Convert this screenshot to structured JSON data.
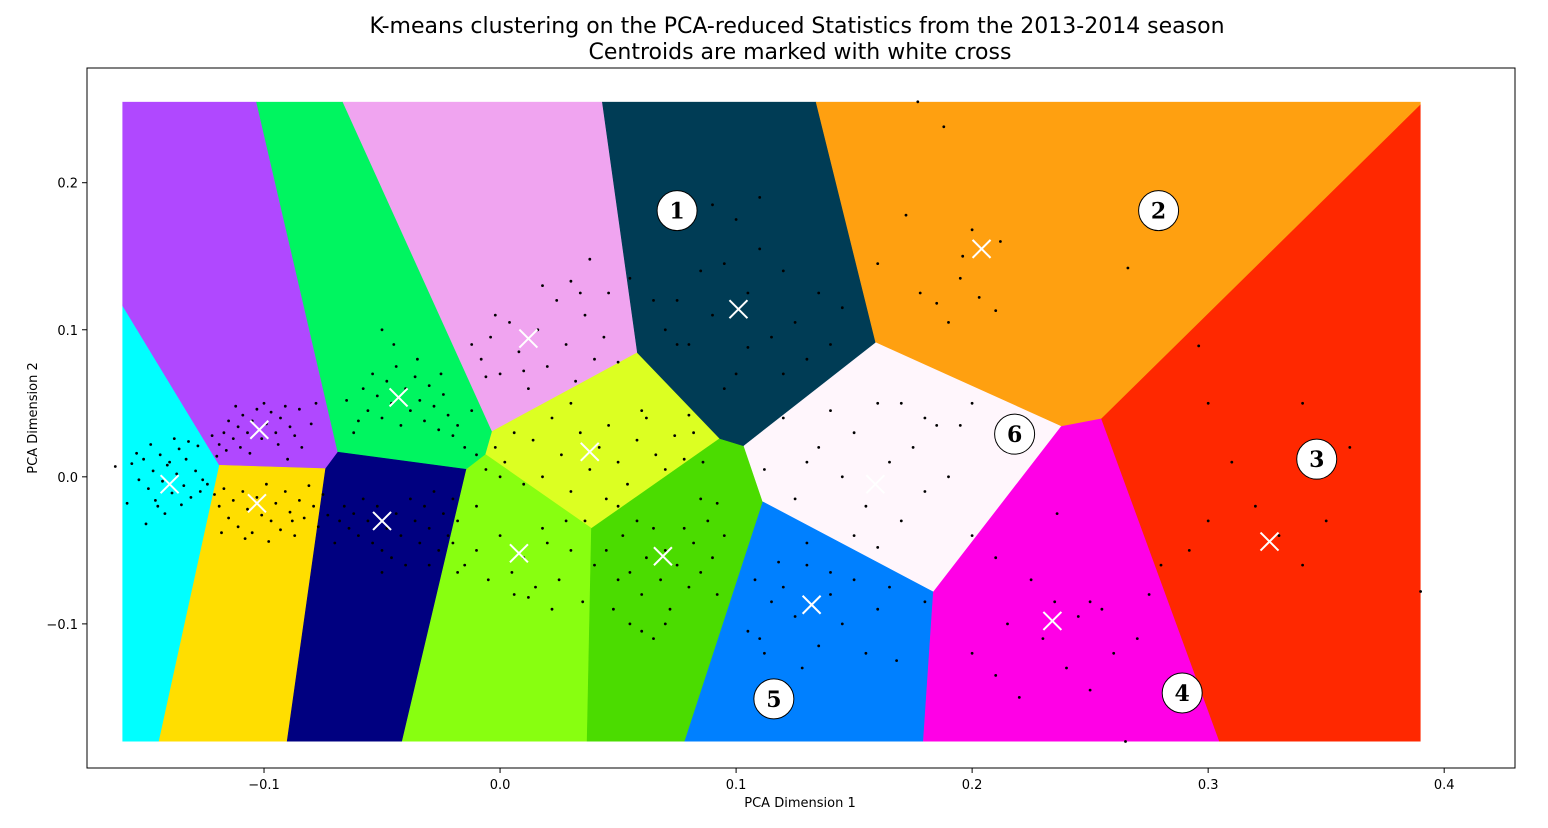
{
  "chart_data": {
    "type": "scatter",
    "title": "K-means clustering on the PCA-reduced Statistics from the 2013-2014 season",
    "subtitle": "Centroids are marked with white cross",
    "xlabel": "PCA Dimension 1",
    "ylabel": "PCA Dimension 2",
    "xlim": [
      -0.175,
      0.43
    ],
    "ylim": [
      -0.198,
      0.278
    ],
    "region_bounds": {
      "x": [
        -0.16,
        0.39
      ],
      "y": [
        -0.18,
        0.255
      ]
    },
    "xticks": [
      -0.1,
      0.0,
      0.1,
      0.2,
      0.3,
      0.4
    ],
    "xtick_labels": [
      "−0.1",
      "0.0",
      "0.1",
      "0.2",
      "0.3",
      "0.4"
    ],
    "yticks": [
      -0.1,
      0.0,
      0.1,
      0.2
    ],
    "ytick_labels": [
      "−0.1",
      "0.0",
      "0.1",
      "0.2"
    ],
    "grid": false,
    "centroids": [
      {
        "x": -0.14,
        "y": -0.005,
        "color": "#00ffff"
      },
      {
        "x": -0.102,
        "y": 0.032,
        "color": "#b048ff"
      },
      {
        "x": -0.103,
        "y": -0.018,
        "color": "#ffde00"
      },
      {
        "x": -0.043,
        "y": 0.054,
        "color": "#00f560"
      },
      {
        "x": -0.05,
        "y": -0.03,
        "color": "#000080"
      },
      {
        "x": 0.012,
        "y": 0.094,
        "color": "#f0a4f0"
      },
      {
        "x": 0.038,
        "y": 0.017,
        "color": "#dcff22"
      },
      {
        "x": 0.008,
        "y": -0.052,
        "color": "#88ff10"
      },
      {
        "x": 0.069,
        "y": -0.054,
        "color": "#4bdc00"
      },
      {
        "x": 0.101,
        "y": 0.114,
        "color": "#003c55"
      },
      {
        "x": 0.204,
        "y": 0.155,
        "color": "#ffa010"
      },
      {
        "x": 0.159,
        "y": -0.005,
        "color": "#fff6fc"
      },
      {
        "x": 0.132,
        "y": -0.087,
        "color": "#0080ff"
      },
      {
        "x": 0.234,
        "y": -0.098,
        "color": "#ff00e6"
      },
      {
        "x": 0.326,
        "y": -0.044,
        "color": "#ff2800"
      }
    ],
    "annotations": [
      {
        "text": "1",
        "x": 0.075,
        "y": 0.181
      },
      {
        "text": "2",
        "x": 0.279,
        "y": 0.181
      },
      {
        "text": "3",
        "x": 0.346,
        "y": 0.012
      },
      {
        "text": "4",
        "x": 0.289,
        "y": -0.147
      },
      {
        "text": "5",
        "x": 0.116,
        "y": -0.151
      },
      {
        "text": "6",
        "x": 0.218,
        "y": 0.029
      }
    ],
    "points": [
      [
        -0.163,
        0.007
      ],
      [
        -0.156,
        0.009
      ],
      [
        -0.153,
        -0.002
      ],
      [
        -0.151,
        0.012
      ],
      [
        -0.149,
        -0.008
      ],
      [
        -0.147,
        0.004
      ],
      [
        -0.146,
        -0.016
      ],
      [
        -0.144,
        0.015
      ],
      [
        -0.143,
        -0.003
      ],
      [
        -0.141,
        0.008
      ],
      [
        -0.139,
        -0.011
      ],
      [
        -0.137,
        0.002
      ],
      [
        -0.136,
        0.019
      ],
      [
        -0.134,
        -0.006
      ],
      [
        -0.133,
        0.012
      ],
      [
        -0.131,
        -0.014
      ],
      [
        -0.129,
        0.004
      ],
      [
        -0.128,
        0.021
      ],
      [
        -0.126,
        -0.002
      ],
      [
        -0.158,
        -0.018
      ],
      [
        -0.15,
        -0.032
      ],
      [
        -0.148,
        0.022
      ],
      [
        -0.142,
        -0.025
      ],
      [
        -0.138,
        0.026
      ],
      [
        -0.132,
        0.024
      ],
      [
        -0.127,
        -0.01
      ],
      [
        -0.154,
        0.016
      ],
      [
        -0.145,
        -0.02
      ],
      [
        -0.14,
        0.01
      ],
      [
        -0.135,
        -0.019
      ],
      [
        -0.122,
        0.028
      ],
      [
        -0.119,
        0.022
      ],
      [
        -0.117,
        0.03
      ],
      [
        -0.115,
        0.038
      ],
      [
        -0.113,
        0.026
      ],
      [
        -0.111,
        0.034
      ],
      [
        -0.109,
        0.042
      ],
      [
        -0.107,
        0.03
      ],
      [
        -0.105,
        0.038
      ],
      [
        -0.103,
        0.046
      ],
      [
        -0.101,
        0.026
      ],
      [
        -0.099,
        0.036
      ],
      [
        -0.097,
        0.044
      ],
      [
        -0.095,
        0.03
      ],
      [
        -0.093,
        0.04
      ],
      [
        -0.091,
        0.048
      ],
      [
        -0.089,
        0.034
      ],
      [
        -0.087,
        0.028
      ],
      [
        -0.085,
        0.046
      ],
      [
        -0.12,
        0.014
      ],
      [
        -0.116,
        0.018
      ],
      [
        -0.11,
        0.02
      ],
      [
        -0.106,
        0.016
      ],
      [
        -0.094,
        0.022
      ],
      [
        -0.084,
        0.02
      ],
      [
        -0.08,
        0.036
      ],
      [
        -0.078,
        0.05
      ],
      [
        -0.112,
        0.048
      ],
      [
        -0.1,
        0.05
      ],
      [
        -0.09,
        0.012
      ],
      [
        -0.124,
        -0.005
      ],
      [
        -0.121,
        -0.012
      ],
      [
        -0.119,
        -0.02
      ],
      [
        -0.117,
        -0.008
      ],
      [
        -0.115,
        -0.028
      ],
      [
        -0.113,
        -0.016
      ],
      [
        -0.111,
        -0.034
      ],
      [
        -0.109,
        -0.01
      ],
      [
        -0.107,
        -0.022
      ],
      [
        -0.105,
        -0.038
      ],
      [
        -0.103,
        -0.014
      ],
      [
        -0.101,
        -0.026
      ],
      [
        -0.099,
        -0.005
      ],
      [
        -0.097,
        -0.03
      ],
      [
        -0.095,
        -0.018
      ],
      [
        -0.093,
        -0.036
      ],
      [
        -0.091,
        -0.01
      ],
      [
        -0.089,
        -0.024
      ],
      [
        -0.087,
        -0.04
      ],
      [
        -0.085,
        -0.016
      ],
      [
        -0.083,
        -0.028
      ],
      [
        -0.081,
        -0.006
      ],
      [
        -0.079,
        -0.02
      ],
      [
        -0.077,
        -0.034
      ],
      [
        -0.075,
        -0.012
      ],
      [
        -0.073,
        -0.026
      ],
      [
        -0.118,
        -0.038
      ],
      [
        -0.108,
        -0.042
      ],
      [
        -0.098,
        -0.044
      ],
      [
        -0.088,
        -0.03
      ],
      [
        -0.068,
        -0.03
      ],
      [
        -0.066,
        -0.02
      ],
      [
        -0.064,
        -0.035
      ],
      [
        -0.062,
        -0.025
      ],
      [
        -0.06,
        -0.04
      ],
      [
        -0.058,
        -0.015
      ],
      [
        -0.056,
        -0.03
      ],
      [
        -0.054,
        -0.045
      ],
      [
        -0.052,
        -0.02
      ],
      [
        -0.05,
        -0.05
      ],
      [
        -0.048,
        -0.035
      ],
      [
        -0.046,
        -0.055
      ],
      [
        -0.044,
        -0.025
      ],
      [
        -0.042,
        -0.04
      ],
      [
        -0.04,
        -0.06
      ],
      [
        -0.038,
        -0.015
      ],
      [
        -0.036,
        -0.03
      ],
      [
        -0.034,
        -0.045
      ],
      [
        -0.032,
        -0.02
      ],
      [
        -0.03,
        -0.035
      ],
      [
        -0.028,
        -0.01
      ],
      [
        -0.026,
        -0.05
      ],
      [
        -0.024,
        -0.025
      ],
      [
        -0.022,
        -0.04
      ],
      [
        -0.02,
        -0.015
      ],
      [
        -0.018,
        -0.03
      ],
      [
        -0.07,
        -0.045
      ],
      [
        -0.05,
        -0.065
      ],
      [
        -0.03,
        -0.06
      ],
      [
        -0.01,
        -0.02
      ],
      [
        -0.058,
        0.06
      ],
      [
        -0.056,
        0.045
      ],
      [
        -0.054,
        0.07
      ],
      [
        -0.052,
        0.055
      ],
      [
        -0.05,
        0.04
      ],
      [
        -0.048,
        0.065
      ],
      [
        -0.046,
        0.05
      ],
      [
        -0.044,
        0.075
      ],
      [
        -0.042,
        0.035
      ],
      [
        -0.04,
        0.06
      ],
      [
        -0.038,
        0.045
      ],
      [
        -0.036,
        0.068
      ],
      [
        -0.034,
        0.052
      ],
      [
        -0.032,
        0.038
      ],
      [
        -0.03,
        0.062
      ],
      [
        -0.028,
        0.048
      ],
      [
        -0.026,
        0.032
      ],
      [
        -0.024,
        0.056
      ],
      [
        -0.022,
        0.042
      ],
      [
        -0.02,
        0.028
      ],
      [
        -0.065,
        0.052
      ],
      [
        -0.06,
        0.038
      ],
      [
        -0.05,
        0.1
      ],
      [
        -0.045,
        0.09
      ],
      [
        -0.035,
        0.08
      ],
      [
        -0.025,
        0.07
      ],
      [
        -0.062,
        0.03
      ],
      [
        -0.015,
        0.02
      ],
      [
        -0.018,
        0.035
      ],
      [
        -0.012,
        0.045
      ],
      [
        -0.012,
        0.09
      ],
      [
        -0.008,
        0.08
      ],
      [
        -0.004,
        0.095
      ],
      [
        0.0,
        0.07
      ],
      [
        0.004,
        0.105
      ],
      [
        0.008,
        0.085
      ],
      [
        0.012,
        0.06
      ],
      [
        0.016,
        0.1
      ],
      [
        0.02,
        0.075
      ],
      [
        0.024,
        0.12
      ],
      [
        0.028,
        0.09
      ],
      [
        0.032,
        0.065
      ],
      [
        0.036,
        0.11
      ],
      [
        0.04,
        0.08
      ],
      [
        0.038,
        0.148
      ],
      [
        0.034,
        0.125
      ],
      [
        0.03,
        0.133
      ],
      [
        0.046,
        0.125
      ],
      [
        0.05,
        0.078
      ],
      [
        -0.006,
        0.068
      ],
      [
        0.044,
        0.095
      ],
      [
        0.018,
        0.13
      ],
      [
        0.01,
        0.072
      ],
      [
        -0.002,
        0.11
      ],
      [
        -0.01,
        0.015
      ],
      [
        -0.006,
        0.005
      ],
      [
        -0.002,
        0.02
      ],
      [
        0.002,
        0.01
      ],
      [
        0.006,
        0.03
      ],
      [
        0.01,
        -0.005
      ],
      [
        0.014,
        0.025
      ],
      [
        0.018,
        0.0
      ],
      [
        0.022,
        0.04
      ],
      [
        0.026,
        0.015
      ],
      [
        0.03,
        -0.01
      ],
      [
        0.034,
        0.03
      ],
      [
        0.038,
        0.005
      ],
      [
        0.042,
        0.02
      ],
      [
        0.046,
        0.035
      ],
      [
        0.05,
        0.01
      ],
      [
        0.054,
        -0.005
      ],
      [
        0.058,
        0.025
      ],
      [
        0.062,
        0.04
      ],
      [
        0.066,
        0.015
      ],
      [
        0.07,
        0.005
      ],
      [
        0.074,
        0.028
      ],
      [
        0.078,
        0.012
      ],
      [
        0.082,
        0.03
      ],
      [
        0.086,
        0.01
      ],
      [
        0.08,
        0.042
      ],
      [
        0.06,
        0.045
      ],
      [
        0.03,
        0.05
      ],
      [
        0.045,
        -0.015
      ],
      [
        0.0,
        0.0
      ],
      [
        -0.02,
        -0.045
      ],
      [
        -0.015,
        -0.06
      ],
      [
        -0.01,
        -0.05
      ],
      [
        -0.005,
        -0.07
      ],
      [
        0.0,
        -0.04
      ],
      [
        0.005,
        -0.065
      ],
      [
        0.01,
        -0.055
      ],
      [
        0.015,
        -0.075
      ],
      [
        0.02,
        -0.045
      ],
      [
        0.025,
        -0.07
      ],
      [
        0.03,
        -0.05
      ],
      [
        0.035,
        -0.085
      ],
      [
        0.04,
        -0.06
      ],
      [
        0.018,
        -0.035
      ],
      [
        0.012,
        -0.082
      ],
      [
        0.028,
        -0.03
      ],
      [
        -0.018,
        -0.065
      ],
      [
        0.022,
        -0.09
      ],
      [
        0.006,
        -0.08
      ],
      [
        0.036,
        -0.03
      ],
      [
        0.045,
        -0.05
      ],
      [
        0.05,
        -0.07
      ],
      [
        0.052,
        -0.04
      ],
      [
        0.055,
        -0.065
      ],
      [
        0.058,
        -0.03
      ],
      [
        0.06,
        -0.08
      ],
      [
        0.062,
        -0.055
      ],
      [
        0.065,
        -0.035
      ],
      [
        0.068,
        -0.07
      ],
      [
        0.07,
        -0.05
      ],
      [
        0.072,
        -0.09
      ],
      [
        0.075,
        -0.06
      ],
      [
        0.078,
        -0.035
      ],
      [
        0.08,
        -0.075
      ],
      [
        0.082,
        -0.045
      ],
      [
        0.085,
        -0.065
      ],
      [
        0.088,
        -0.03
      ],
      [
        0.09,
        -0.055
      ],
      [
        0.092,
        -0.08
      ],
      [
        0.095,
        -0.04
      ],
      [
        0.055,
        -0.1
      ],
      [
        0.06,
        -0.105
      ],
      [
        0.065,
        -0.11
      ],
      [
        0.048,
        -0.09
      ],
      [
        0.07,
        -0.1
      ],
      [
        0.085,
        -0.015
      ],
      [
        0.05,
        -0.02
      ],
      [
        0.092,
        -0.018
      ],
      [
        0.055,
        0.135
      ],
      [
        0.065,
        0.12
      ],
      [
        0.07,
        0.1
      ],
      [
        0.075,
        0.12
      ],
      [
        0.08,
        0.09
      ],
      [
        0.085,
        0.14
      ],
      [
        0.09,
        0.11
      ],
      [
        0.095,
        0.145
      ],
      [
        0.1,
        0.07
      ],
      [
        0.105,
        0.125
      ],
      [
        0.11,
        0.155
      ],
      [
        0.115,
        0.095
      ],
      [
        0.12,
        0.14
      ],
      [
        0.125,
        0.105
      ],
      [
        0.13,
        0.08
      ],
      [
        0.135,
        0.125
      ],
      [
        0.14,
        0.09
      ],
      [
        0.145,
        0.115
      ],
      [
        0.16,
        0.145
      ],
      [
        0.09,
        0.185
      ],
      [
        0.1,
        0.175
      ],
      [
        0.11,
        0.19
      ],
      [
        0.075,
        0.09
      ],
      [
        0.095,
        0.06
      ],
      [
        0.12,
        0.07
      ],
      [
        0.105,
        0.088
      ],
      [
        0.172,
        0.178
      ],
      [
        0.177,
        0.255
      ],
      [
        0.188,
        0.238
      ],
      [
        0.178,
        0.125
      ],
      [
        0.2,
        0.168
      ],
      [
        0.203,
        0.122
      ],
      [
        0.21,
        0.113
      ],
      [
        0.196,
        0.15
      ],
      [
        0.212,
        0.16
      ],
      [
        0.266,
        0.142
      ],
      [
        0.296,
        0.089
      ],
      [
        0.19,
        0.105
      ],
      [
        0.185,
        0.118
      ],
      [
        0.195,
        0.135
      ],
      [
        0.12,
        0.04
      ],
      [
        0.13,
        0.01
      ],
      [
        0.14,
        0.045
      ],
      [
        0.145,
        0.0
      ],
      [
        0.15,
        0.03
      ],
      [
        0.155,
        -0.02
      ],
      [
        0.16,
        0.05
      ],
      [
        0.165,
        0.01
      ],
      [
        0.17,
        -0.03
      ],
      [
        0.175,
        0.02
      ],
      [
        0.18,
        -0.01
      ],
      [
        0.185,
        0.035
      ],
      [
        0.19,
        0.0
      ],
      [
        0.195,
        0.035
      ],
      [
        0.2,
        -0.04
      ],
      [
        0.2,
        0.05
      ],
      [
        0.13,
        -0.045
      ],
      [
        0.16,
        -0.048
      ],
      [
        0.18,
        0.04
      ],
      [
        0.112,
        0.005
      ],
      [
        0.125,
        -0.015
      ],
      [
        0.15,
        -0.04
      ],
      [
        0.135,
        0.02
      ],
      [
        0.17,
        0.05
      ],
      [
        0.105,
        -0.105
      ],
      [
        0.108,
        -0.07
      ],
      [
        0.11,
        -0.11
      ],
      [
        0.115,
        -0.085
      ],
      [
        0.12,
        -0.075
      ],
      [
        0.125,
        -0.095
      ],
      [
        0.13,
        -0.06
      ],
      [
        0.135,
        -0.115
      ],
      [
        0.14,
        -0.08
      ],
      [
        0.145,
        -0.1
      ],
      [
        0.15,
        -0.07
      ],
      [
        0.155,
        -0.12
      ],
      [
        0.16,
        -0.09
      ],
      [
        0.165,
        -0.075
      ],
      [
        0.168,
        -0.125
      ],
      [
        0.18,
        -0.085
      ],
      [
        0.112,
        -0.12
      ],
      [
        0.128,
        -0.13
      ],
      [
        0.14,
        -0.065
      ],
      [
        0.118,
        -0.058
      ],
      [
        0.2,
        -0.12
      ],
      [
        0.21,
        -0.135
      ],
      [
        0.215,
        -0.1
      ],
      [
        0.22,
        -0.15
      ],
      [
        0.23,
        -0.11
      ],
      [
        0.235,
        -0.085
      ],
      [
        0.24,
        -0.13
      ],
      [
        0.245,
        -0.095
      ],
      [
        0.25,
        -0.085
      ],
      [
        0.255,
        -0.09
      ],
      [
        0.26,
        -0.12
      ],
      [
        0.265,
        -0.18
      ],
      [
        0.27,
        -0.11
      ],
      [
        0.275,
        -0.08
      ],
      [
        0.25,
        -0.145
      ],
      [
        0.225,
        -0.07
      ],
      [
        0.21,
        -0.055
      ],
      [
        0.236,
        -0.025
      ],
      [
        0.292,
        -0.05
      ],
      [
        0.3,
        -0.03
      ],
      [
        0.32,
        -0.02
      ],
      [
        0.33,
        -0.04
      ],
      [
        0.34,
        -0.06
      ],
      [
        0.35,
        -0.03
      ],
      [
        0.39,
        -0.078
      ],
      [
        0.31,
        0.01
      ],
      [
        0.36,
        0.02
      ],
      [
        0.28,
        -0.06
      ],
      [
        0.34,
        0.05
      ],
      [
        0.3,
        0.05
      ]
    ]
  }
}
